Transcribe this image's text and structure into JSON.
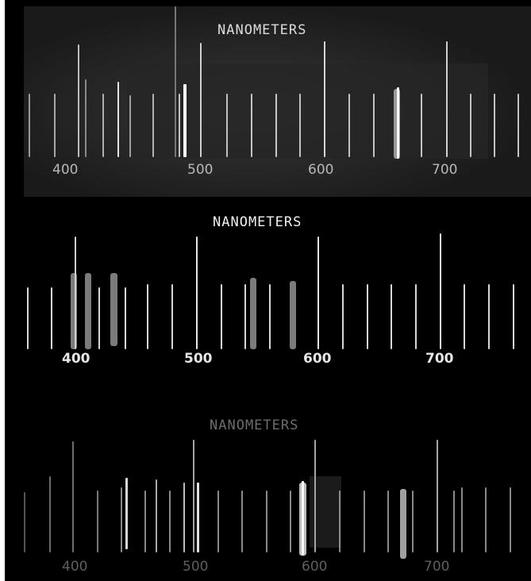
{
  "panels": [
    {
      "title": "NANOMETERS",
      "labels": [
        "400",
        "500",
        "600",
        "700"
      ]
    },
    {
      "title": "NANOMETERS",
      "labels": [
        "400",
        "500",
        "600",
        "700"
      ]
    },
    {
      "title": "NANOMETERS",
      "labels": [
        "400",
        "500",
        "600",
        "700"
      ]
    }
  ]
}
